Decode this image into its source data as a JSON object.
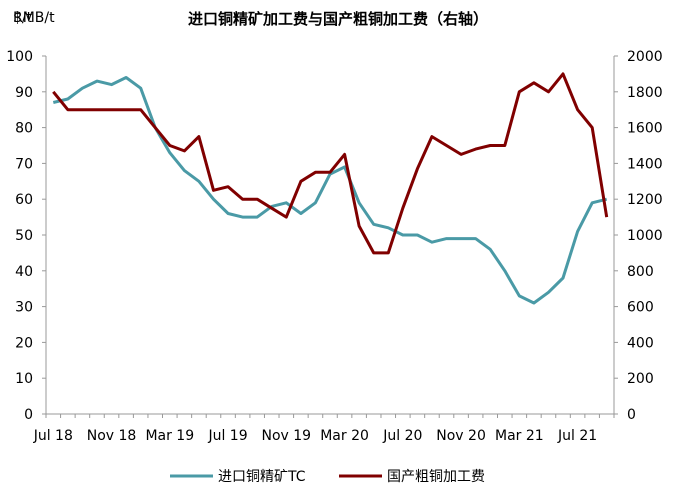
{
  "chart_data": {
    "type": "line",
    "title": "进口铜精矿加工费与国产粗铜加工费（右轴）",
    "y_left_unit": "$/t",
    "y_right_unit": "RMB/t",
    "ylim_left": [
      0,
      100
    ],
    "ylim_right": [
      0,
      2000
    ],
    "yticks_left": [
      "0",
      "10",
      "20",
      "30",
      "40",
      "50",
      "60",
      "70",
      "80",
      "90",
      "100"
    ],
    "yticks_right": [
      "0",
      "200",
      "400",
      "600",
      "800",
      "1000",
      "1200",
      "1400",
      "1600",
      "1800",
      "2000"
    ],
    "x_tick_labels": [
      "Jul 18",
      "Nov 18",
      "Mar 19",
      "Jul 19",
      "Nov 19",
      "Mar 20",
      "Jul 20",
      "Nov 20",
      "Mar 21",
      "Jul 21"
    ],
    "x": [
      "2018-07",
      "2018-08",
      "2018-09",
      "2018-10",
      "2018-11",
      "2018-12",
      "2019-01",
      "2019-02",
      "2019-03",
      "2019-04",
      "2019-05",
      "2019-06",
      "2019-07",
      "2019-08",
      "2019-09",
      "2019-10",
      "2019-11",
      "2019-12",
      "2020-01",
      "2020-02",
      "2020-03",
      "2020-04",
      "2020-05",
      "2020-06",
      "2020-07",
      "2020-08",
      "2020-09",
      "2020-10",
      "2020-11",
      "2020-12",
      "2021-01",
      "2021-02",
      "2021-03",
      "2021-04",
      "2021-05",
      "2021-06",
      "2021-07",
      "2021-08",
      "2021-09"
    ],
    "series": [
      {
        "name": "进口铜精矿TC",
        "axis": "left",
        "color": "#4a9aa6",
        "values": [
          87,
          88,
          91,
          93,
          92,
          94,
          91,
          80,
          73,
          68,
          65,
          60,
          56,
          55,
          55,
          58,
          59,
          56,
          59,
          67,
          69,
          59,
          53,
          52,
          50,
          50,
          48,
          49,
          49,
          49,
          46,
          40,
          33,
          31,
          34,
          38,
          51,
          59,
          60
        ]
      },
      {
        "name": "国产粗铜加工费",
        "axis": "right",
        "color": "#800000",
        "values": [
          1800,
          1700,
          1700,
          1700,
          1700,
          1700,
          1700,
          1600,
          1500,
          1470,
          1550,
          1250,
          1270,
          1200,
          1200,
          1150,
          1100,
          1300,
          1350,
          1350,
          1450,
          1050,
          900,
          900,
          1150,
          1370,
          1550,
          1500,
          1450,
          1480,
          1500,
          1500,
          1800,
          1850,
          1800,
          1900,
          1700,
          1600,
          1100
        ]
      }
    ],
    "legend_position": "bottom"
  }
}
